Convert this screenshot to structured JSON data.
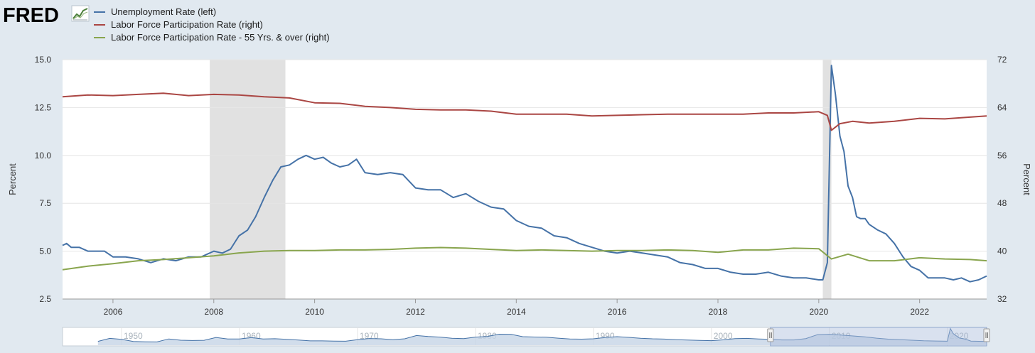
{
  "brand": {
    "name": "FRED"
  },
  "icons": {
    "logo_chart_icon": "line-chart-icon",
    "range_handle_icon": "grip-handle-icon"
  },
  "colors": {
    "background": "#e1e9f0",
    "plot_background": "#ffffff",
    "recession_band": "#e1e1e1",
    "grid": "#e6e6e6",
    "unemployment": "#4572a7",
    "lfpr": "#aa4643",
    "lfpr55": "#89a54e",
    "navigator_fill": "#c6d4e6",
    "navigator_line": "#4572a7",
    "navigator_selection": "#aabcdb"
  },
  "chart_data": {
    "type": "line",
    "legend_position": "top-left",
    "grid": true,
    "legend": [
      "Unemployment Rate (left)",
      "Labor Force Participation Rate (right)",
      "Labor Force Participation Rate - 55 Yrs. & over (right)"
    ],
    "y_left": {
      "label": "Percent",
      "range": [
        2.5,
        15.0
      ],
      "ticks": [
        "2.5",
        "5.0",
        "7.5",
        "10.0",
        "12.5",
        "15.0"
      ]
    },
    "y_right": {
      "label": "Percent",
      "range": [
        32,
        72
      ],
      "ticks": [
        "32",
        "40",
        "48",
        "56",
        "64",
        "72"
      ]
    },
    "x_range": [
      2005.0,
      2023.33
    ],
    "x_ticks": [
      "2006",
      "2008",
      "2010",
      "2012",
      "2014",
      "2016",
      "2018",
      "2020",
      "2022"
    ],
    "recessions": [
      [
        2007.92,
        2009.42
      ],
      [
        2020.08,
        2020.25
      ]
    ],
    "series": [
      {
        "name": "Unemployment Rate (left)",
        "axis": "left",
        "points": [
          [
            2005.0,
            5.3
          ],
          [
            2005.08,
            5.4
          ],
          [
            2005.17,
            5.2
          ],
          [
            2005.33,
            5.2
          ],
          [
            2005.5,
            5.0
          ],
          [
            2005.67,
            5.0
          ],
          [
            2005.83,
            5.0
          ],
          [
            2006.0,
            4.7
          ],
          [
            2006.25,
            4.7
          ],
          [
            2006.5,
            4.6
          ],
          [
            2006.75,
            4.4
          ],
          [
            2007.0,
            4.6
          ],
          [
            2007.25,
            4.5
          ],
          [
            2007.5,
            4.7
          ],
          [
            2007.75,
            4.7
          ],
          [
            2008.0,
            5.0
          ],
          [
            2008.17,
            4.9
          ],
          [
            2008.33,
            5.1
          ],
          [
            2008.5,
            5.8
          ],
          [
            2008.67,
            6.1
          ],
          [
            2008.83,
            6.8
          ],
          [
            2009.0,
            7.8
          ],
          [
            2009.17,
            8.7
          ],
          [
            2009.33,
            9.4
          ],
          [
            2009.5,
            9.5
          ],
          [
            2009.67,
            9.8
          ],
          [
            2009.83,
            10.0
          ],
          [
            2010.0,
            9.8
          ],
          [
            2010.17,
            9.9
          ],
          [
            2010.33,
            9.6
          ],
          [
            2010.5,
            9.4
          ],
          [
            2010.67,
            9.5
          ],
          [
            2010.83,
            9.8
          ],
          [
            2011.0,
            9.1
          ],
          [
            2011.25,
            9.0
          ],
          [
            2011.5,
            9.1
          ],
          [
            2011.75,
            9.0
          ],
          [
            2012.0,
            8.3
          ],
          [
            2012.25,
            8.2
          ],
          [
            2012.5,
            8.2
          ],
          [
            2012.75,
            7.8
          ],
          [
            2013.0,
            8.0
          ],
          [
            2013.25,
            7.6
          ],
          [
            2013.5,
            7.3
          ],
          [
            2013.75,
            7.2
          ],
          [
            2014.0,
            6.6
          ],
          [
            2014.25,
            6.3
          ],
          [
            2014.5,
            6.2
          ],
          [
            2014.75,
            5.8
          ],
          [
            2015.0,
            5.7
          ],
          [
            2015.25,
            5.4
          ],
          [
            2015.5,
            5.2
          ],
          [
            2015.75,
            5.0
          ],
          [
            2016.0,
            4.9
          ],
          [
            2016.25,
            5.0
          ],
          [
            2016.5,
            4.9
          ],
          [
            2016.75,
            4.8
          ],
          [
            2017.0,
            4.7
          ],
          [
            2017.25,
            4.4
          ],
          [
            2017.5,
            4.3
          ],
          [
            2017.75,
            4.1
          ],
          [
            2018.0,
            4.1
          ],
          [
            2018.25,
            3.9
          ],
          [
            2018.5,
            3.8
          ],
          [
            2018.75,
            3.8
          ],
          [
            2019.0,
            3.9
          ],
          [
            2019.25,
            3.7
          ],
          [
            2019.5,
            3.6
          ],
          [
            2019.75,
            3.6
          ],
          [
            2020.0,
            3.5
          ],
          [
            2020.08,
            3.5
          ],
          [
            2020.17,
            4.4
          ],
          [
            2020.25,
            14.7
          ],
          [
            2020.33,
            13.2
          ],
          [
            2020.42,
            11.0
          ],
          [
            2020.5,
            10.2
          ],
          [
            2020.58,
            8.4
          ],
          [
            2020.67,
            7.8
          ],
          [
            2020.75,
            6.8
          ],
          [
            2020.83,
            6.7
          ],
          [
            2020.92,
            6.7
          ],
          [
            2021.0,
            6.4
          ],
          [
            2021.17,
            6.1
          ],
          [
            2021.33,
            5.9
          ],
          [
            2021.5,
            5.4
          ],
          [
            2021.67,
            4.7
          ],
          [
            2021.83,
            4.2
          ],
          [
            2022.0,
            4.0
          ],
          [
            2022.17,
            3.6
          ],
          [
            2022.33,
            3.6
          ],
          [
            2022.5,
            3.6
          ],
          [
            2022.67,
            3.5
          ],
          [
            2022.83,
            3.6
          ],
          [
            2023.0,
            3.4
          ],
          [
            2023.17,
            3.5
          ],
          [
            2023.33,
            3.7
          ]
        ]
      },
      {
        "name": "Labor Force Participation Rate (right)",
        "axis": "right",
        "points": [
          [
            2005.0,
            65.8
          ],
          [
            2005.5,
            66.1
          ],
          [
            2006.0,
            66.0
          ],
          [
            2006.5,
            66.2
          ],
          [
            2007.0,
            66.4
          ],
          [
            2007.5,
            66.0
          ],
          [
            2008.0,
            66.2
          ],
          [
            2008.5,
            66.1
          ],
          [
            2009.0,
            65.8
          ],
          [
            2009.5,
            65.6
          ],
          [
            2010.0,
            64.8
          ],
          [
            2010.5,
            64.7
          ],
          [
            2011.0,
            64.2
          ],
          [
            2011.5,
            64.0
          ],
          [
            2012.0,
            63.7
          ],
          [
            2012.5,
            63.6
          ],
          [
            2013.0,
            63.6
          ],
          [
            2013.5,
            63.4
          ],
          [
            2014.0,
            62.9
          ],
          [
            2014.5,
            62.9
          ],
          [
            2015.0,
            62.9
          ],
          [
            2015.5,
            62.6
          ],
          [
            2016.0,
            62.7
          ],
          [
            2016.5,
            62.8
          ],
          [
            2017.0,
            62.9
          ],
          [
            2017.5,
            62.9
          ],
          [
            2018.0,
            62.9
          ],
          [
            2018.5,
            62.9
          ],
          [
            2019.0,
            63.1
          ],
          [
            2019.5,
            63.1
          ],
          [
            2020.0,
            63.3
          ],
          [
            2020.17,
            62.7
          ],
          [
            2020.25,
            60.2
          ],
          [
            2020.42,
            61.3
          ],
          [
            2020.67,
            61.7
          ],
          [
            2021.0,
            61.4
          ],
          [
            2021.5,
            61.7
          ],
          [
            2022.0,
            62.2
          ],
          [
            2022.5,
            62.1
          ],
          [
            2023.0,
            62.4
          ],
          [
            2023.33,
            62.6
          ]
        ]
      },
      {
        "name": "Labor Force Participation Rate - 55 Yrs. & over (right)",
        "axis": "right",
        "points": [
          [
            2005.0,
            36.9
          ],
          [
            2005.5,
            37.5
          ],
          [
            2006.0,
            37.9
          ],
          [
            2006.5,
            38.4
          ],
          [
            2007.0,
            38.6
          ],
          [
            2007.5,
            38.9
          ],
          [
            2008.0,
            39.2
          ],
          [
            2008.5,
            39.7
          ],
          [
            2009.0,
            40.0
          ],
          [
            2009.5,
            40.1
          ],
          [
            2010.0,
            40.1
          ],
          [
            2010.5,
            40.2
          ],
          [
            2011.0,
            40.2
          ],
          [
            2011.5,
            40.3
          ],
          [
            2012.0,
            40.5
          ],
          [
            2012.5,
            40.6
          ],
          [
            2013.0,
            40.5
          ],
          [
            2013.5,
            40.3
          ],
          [
            2014.0,
            40.1
          ],
          [
            2014.5,
            40.2
          ],
          [
            2015.0,
            40.1
          ],
          [
            2015.5,
            40.0
          ],
          [
            2016.0,
            40.1
          ],
          [
            2016.5,
            40.1
          ],
          [
            2017.0,
            40.2
          ],
          [
            2017.5,
            40.1
          ],
          [
            2018.0,
            39.8
          ],
          [
            2018.5,
            40.2
          ],
          [
            2019.0,
            40.2
          ],
          [
            2019.5,
            40.5
          ],
          [
            2020.0,
            40.4
          ],
          [
            2020.25,
            38.7
          ],
          [
            2020.58,
            39.5
          ],
          [
            2021.0,
            38.4
          ],
          [
            2021.5,
            38.4
          ],
          [
            2022.0,
            38.9
          ],
          [
            2022.5,
            38.7
          ],
          [
            2023.0,
            38.6
          ],
          [
            2023.33,
            38.4
          ]
        ]
      }
    ],
    "navigator": {
      "range": [
        1945.0,
        2023.33
      ],
      "ticks": [
        "1950",
        "1960",
        "1970",
        "1980",
        "1990",
        "2000",
        "2010",
        "2020"
      ],
      "selection": [
        2005.0,
        2023.33
      ],
      "points": [
        [
          1948,
          3.4
        ],
        [
          1949,
          6.0
        ],
        [
          1950,
          5.2
        ],
        [
          1951,
          3.3
        ],
        [
          1952,
          3.0
        ],
        [
          1953,
          2.9
        ],
        [
          1954,
          5.5
        ],
        [
          1955,
          4.4
        ],
        [
          1956,
          4.1
        ],
        [
          1957,
          4.3
        ],
        [
          1958,
          6.8
        ],
        [
          1959,
          5.5
        ],
        [
          1960,
          5.5
        ],
        [
          1961,
          6.7
        ],
        [
          1962,
          5.5
        ],
        [
          1963,
          5.7
        ],
        [
          1964,
          5.2
        ],
        [
          1965,
          4.5
        ],
        [
          1966,
          3.8
        ],
        [
          1967,
          3.8
        ],
        [
          1968,
          3.6
        ],
        [
          1969,
          3.5
        ],
        [
          1970,
          4.9
        ],
        [
          1971,
          5.9
        ],
        [
          1972,
          5.6
        ],
        [
          1973,
          4.9
        ],
        [
          1974,
          5.6
        ],
        [
          1975,
          8.5
        ],
        [
          1976,
          7.7
        ],
        [
          1977,
          7.1
        ],
        [
          1978,
          6.1
        ],
        [
          1979,
          5.8
        ],
        [
          1980,
          7.1
        ],
        [
          1981,
          7.6
        ],
        [
          1982,
          9.7
        ],
        [
          1983,
          9.6
        ],
        [
          1984,
          7.5
        ],
        [
          1985,
          7.2
        ],
        [
          1986,
          7.0
        ],
        [
          1987,
          6.2
        ],
        [
          1988,
          5.5
        ],
        [
          1989,
          5.3
        ],
        [
          1990,
          5.6
        ],
        [
          1991,
          6.8
        ],
        [
          1992,
          7.5
        ],
        [
          1993,
          6.9
        ],
        [
          1994,
          6.1
        ],
        [
          1995,
          5.6
        ],
        [
          1996,
          5.4
        ],
        [
          1997,
          4.9
        ],
        [
          1998,
          4.5
        ],
        [
          1999,
          4.2
        ],
        [
          2000,
          4.0
        ],
        [
          2001,
          4.7
        ],
        [
          2002,
          5.8
        ],
        [
          2003,
          6.0
        ],
        [
          2004,
          5.5
        ],
        [
          2005,
          5.1
        ],
        [
          2006,
          4.6
        ],
        [
          2007,
          4.6
        ],
        [
          2008,
          5.8
        ],
        [
          2009,
          9.3
        ],
        [
          2010,
          9.6
        ],
        [
          2011,
          8.9
        ],
        [
          2012,
          8.1
        ],
        [
          2013,
          7.4
        ],
        [
          2014,
          6.2
        ],
        [
          2015,
          5.3
        ],
        [
          2016,
          4.9
        ],
        [
          2017,
          4.4
        ],
        [
          2018,
          3.9
        ],
        [
          2019,
          3.7
        ],
        [
          2020.0,
          3.5
        ],
        [
          2020.25,
          14.7
        ],
        [
          2020.5,
          10.2
        ],
        [
          2021,
          6.4
        ],
        [
          2021.5,
          5.4
        ],
        [
          2022,
          3.6
        ],
        [
          2023,
          3.4
        ],
        [
          2023.33,
          3.7
        ]
      ]
    }
  }
}
